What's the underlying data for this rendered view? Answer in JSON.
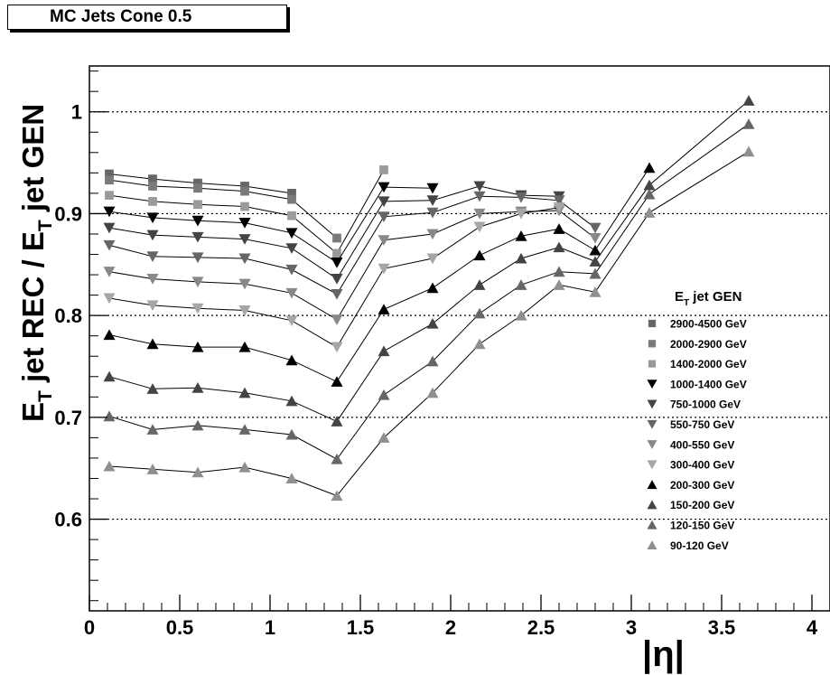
{
  "title": "MC Jets Cone 0.5",
  "chart_data": {
    "type": "line",
    "ylabel": {
      "main_a": "E",
      "sub_a": "T",
      "main_b": " jet REC / E",
      "sub_b": "T",
      "main_c": " jet GEN"
    },
    "xlabel": "|η|",
    "xlim": [
      0,
      4.1
    ],
    "ylim": [
      0.51,
      1.045
    ],
    "xticks": [
      0,
      0.5,
      1,
      1.5,
      2,
      2.5,
      3,
      3.5,
      4
    ],
    "xtick_labels": [
      "0",
      "0.5",
      "1",
      "1.5",
      "2",
      "2.5",
      "3",
      "3.5",
      "4"
    ],
    "yticks": [
      0.6,
      0.7,
      0.8,
      0.9,
      1
    ],
    "ytick_labels": [
      "0.6",
      "0.7",
      "0.8",
      "0.9",
      "1"
    ],
    "grid": "horizontal dotted",
    "legend_title": {
      "main": "E",
      "sub": "T",
      "rest": " jet GEN"
    },
    "legend_position": "right",
    "series": [
      {
        "name": "2900-4500 GeV",
        "marker": "square",
        "color": "#666666",
        "x": [
          0.11,
          0.35,
          0.6,
          0.86,
          1.12
        ],
        "y": [
          0.939,
          0.934,
          0.93,
          0.927,
          0.92
        ]
      },
      {
        "name": "2000-2900 GeV",
        "marker": "square",
        "color": "#7a7a7a",
        "x": [
          0.11,
          0.35,
          0.6,
          0.86,
          1.12,
          1.37
        ],
        "y": [
          0.933,
          0.927,
          0.925,
          0.922,
          0.914,
          0.876
        ]
      },
      {
        "name": "1400-2000 GeV",
        "marker": "square",
        "color": "#9a9a9a",
        "x": [
          0.11,
          0.35,
          0.6,
          0.86,
          1.12,
          1.37,
          1.63
        ],
        "y": [
          0.918,
          0.912,
          0.909,
          0.907,
          0.898,
          0.861,
          0.943
        ]
      },
      {
        "name": "1000-1400 GeV",
        "marker": "tri-down",
        "color": "#000000",
        "x": [
          0.11,
          0.35,
          0.6,
          0.86,
          1.12,
          1.37,
          1.63,
          1.9
        ],
        "y": [
          0.902,
          0.896,
          0.893,
          0.891,
          0.881,
          0.852,
          0.926,
          0.925
        ]
      },
      {
        "name": "750-1000 GeV",
        "marker": "tri-down",
        "color": "#444444",
        "x": [
          0.11,
          0.35,
          0.6,
          0.86,
          1.12,
          1.37,
          1.63,
          1.9,
          2.16,
          2.39,
          2.6
        ],
        "y": [
          0.886,
          0.879,
          0.877,
          0.875,
          0.866,
          0.836,
          0.912,
          0.913,
          0.927,
          0.918,
          0.917
        ]
      },
      {
        "name": "550-750 GeV",
        "marker": "tri-down",
        "color": "#666666",
        "x": [
          0.11,
          0.35,
          0.6,
          0.86,
          1.12,
          1.37,
          1.63,
          1.9,
          2.16,
          2.39,
          2.6,
          2.8
        ],
        "y": [
          0.869,
          0.858,
          0.857,
          0.856,
          0.845,
          0.821,
          0.897,
          0.901,
          0.917,
          0.916,
          0.913,
          0.886
        ]
      },
      {
        "name": "400-550 GeV",
        "marker": "tri-down",
        "color": "#888888",
        "x": [
          0.11,
          0.35,
          0.6,
          0.86,
          1.12,
          1.37,
          1.63,
          1.9,
          2.16,
          2.39,
          2.6,
          2.8
        ],
        "y": [
          0.843,
          0.836,
          0.833,
          0.831,
          0.822,
          0.796,
          0.874,
          0.88,
          0.9,
          0.902,
          0.903,
          0.876
        ]
      },
      {
        "name": "300-400 GeV",
        "marker": "tri-down",
        "color": "#a6a6a6",
        "x": [
          0.11,
          0.35,
          0.6,
          0.86,
          1.12,
          1.37,
          1.63,
          1.9,
          2.16,
          2.39,
          2.6
        ],
        "y": [
          0.817,
          0.81,
          0.807,
          0.805,
          0.795,
          0.769,
          0.846,
          0.856,
          0.887,
          0.9,
          0.906
        ]
      },
      {
        "name": "200-300 GeV",
        "marker": "tri-up",
        "color": "#000000",
        "x": [
          0.11,
          0.35,
          0.6,
          0.86,
          1.12,
          1.37,
          1.63,
          1.9,
          2.16,
          2.39,
          2.6,
          2.8,
          3.1
        ],
        "y": [
          0.781,
          0.772,
          0.769,
          0.769,
          0.756,
          0.735,
          0.806,
          0.827,
          0.859,
          0.878,
          0.885,
          0.864,
          0.945
        ]
      },
      {
        "name": "150-200 GeV",
        "marker": "tri-up",
        "color": "#444444",
        "x": [
          0.11,
          0.35,
          0.6,
          0.86,
          1.12,
          1.37,
          1.63,
          1.9,
          2.16,
          2.39,
          2.6,
          2.8,
          3.1,
          3.65
        ],
        "y": [
          0.74,
          0.728,
          0.729,
          0.724,
          0.716,
          0.696,
          0.765,
          0.792,
          0.83,
          0.856,
          0.867,
          0.853,
          0.928,
          1.011
        ]
      },
      {
        "name": "120-150 GeV",
        "marker": "tri-up",
        "color": "#666666",
        "x": [
          0.11,
          0.35,
          0.6,
          0.86,
          1.12,
          1.37,
          1.63,
          1.9,
          2.16,
          2.39,
          2.6,
          2.8,
          3.1,
          3.65
        ],
        "y": [
          0.701,
          0.688,
          0.692,
          0.688,
          0.683,
          0.659,
          0.722,
          0.755,
          0.802,
          0.83,
          0.843,
          0.841,
          0.919,
          0.988
        ]
      },
      {
        "name": "90-120 GeV",
        "marker": "tri-up",
        "color": "#8f8f8f",
        "x": [
          0.11,
          0.35,
          0.6,
          0.86,
          1.12,
          1.37,
          1.63,
          1.9,
          2.16,
          2.39,
          2.6,
          2.8,
          3.1,
          3.65
        ],
        "y": [
          0.652,
          0.649,
          0.646,
          0.651,
          0.64,
          0.623,
          0.68,
          0.724,
          0.772,
          0.8,
          0.83,
          0.823,
          0.901,
          0.961
        ]
      }
    ]
  }
}
